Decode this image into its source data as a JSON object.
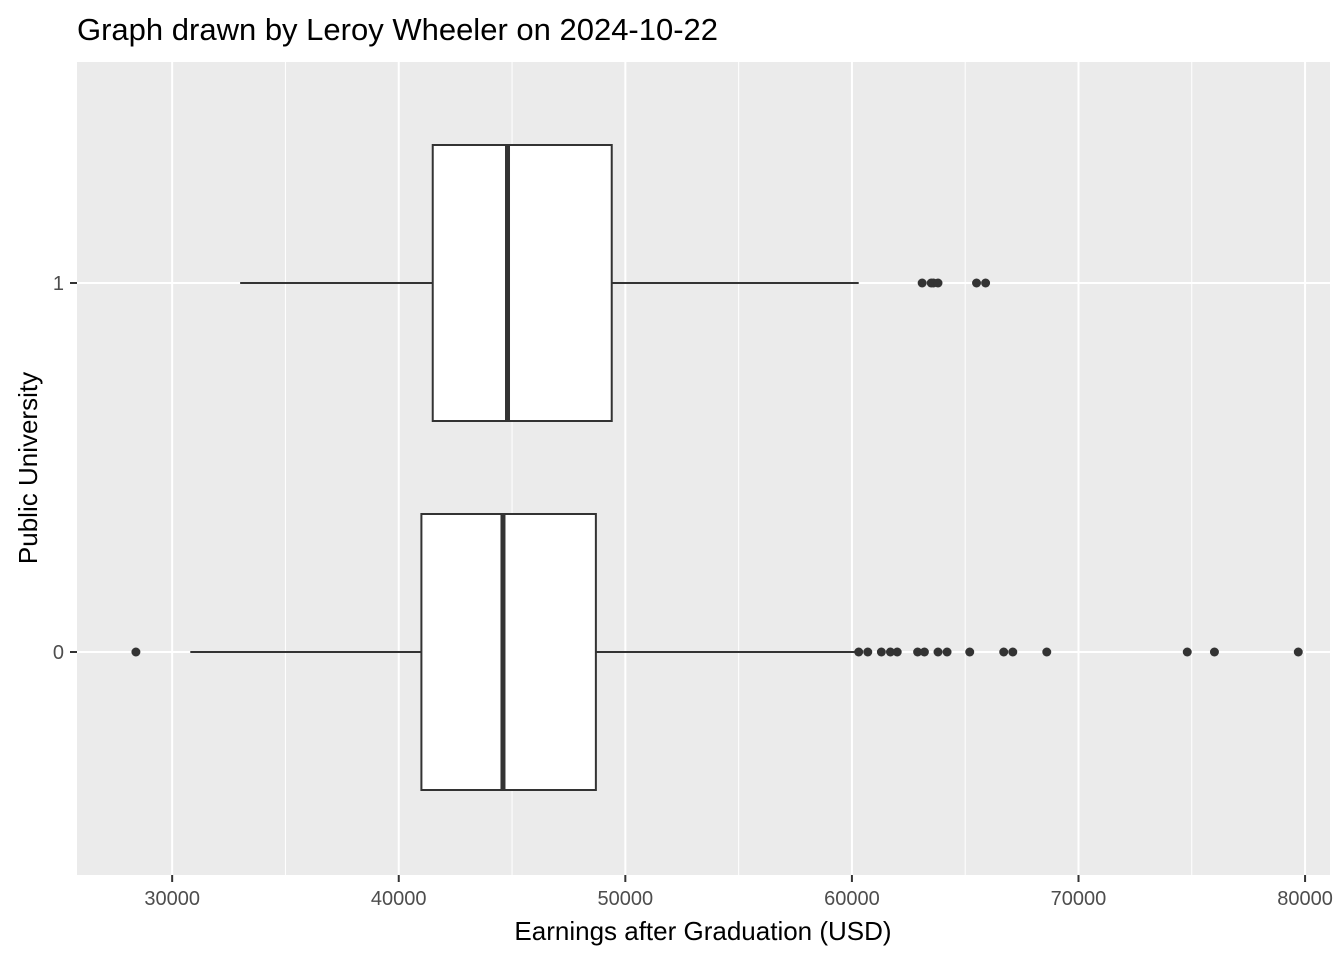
{
  "chart_data": {
    "type": "boxplot",
    "orientation": "horizontal",
    "title": "Graph drawn by Leroy Wheeler on 2024-10-22",
    "xlabel": "Earnings after Graduation (USD)",
    "ylabel": "Public University",
    "xlim": [
      25800,
      81100
    ],
    "x_ticks": [
      30000,
      40000,
      50000,
      60000,
      70000,
      80000
    ],
    "x_tick_labels": [
      "30000",
      "40000",
      "50000",
      "60000",
      "70000",
      "80000"
    ],
    "categories": [
      "0",
      "1"
    ],
    "grid": true,
    "legend": "none",
    "series": [
      {
        "category": "1",
        "whisker_low": 33000,
        "q1": 41500,
        "median": 44800,
        "q3": 49400,
        "whisker_high": 60300,
        "outliers": [
          63100,
          63500,
          63600,
          63800,
          65500,
          65900
        ]
      },
      {
        "category": "0",
        "whisker_low": 30800,
        "q1": 41000,
        "median": 44600,
        "q3": 48700,
        "whisker_high": 60200,
        "outliers": [
          28400,
          60300,
          60700,
          61300,
          61700,
          62000,
          62900,
          63200,
          63800,
          64200,
          65200,
          66700,
          67100,
          68600,
          74800,
          76000,
          79700
        ]
      }
    ],
    "colors": {
      "panel_background": "#EBEBEB",
      "grid_major": "#FFFFFF",
      "box_fill": "#FFFFFF",
      "box_stroke": "#333333",
      "outlier": "#333333"
    }
  }
}
